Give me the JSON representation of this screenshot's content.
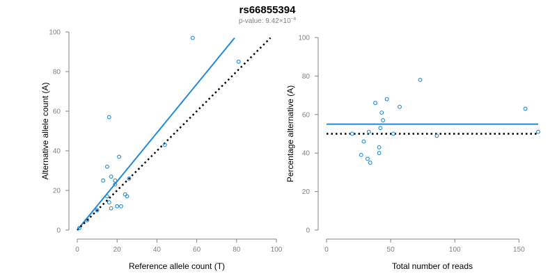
{
  "title": "rs66855394",
  "subtitle": {
    "prefix": "p-value: 9.42×10",
    "exponent": "−4"
  },
  "colors": {
    "points": "#1f8bd8",
    "fit_line": "#1f8bd8",
    "reference_line": "#000000",
    "axis": "#808080"
  },
  "chart_data": [
    {
      "type": "scatter",
      "xlabel": "Reference allele count (T)",
      "ylabel": "Alternative allele count (A)",
      "xlim": [
        0,
        100
      ],
      "ylim": [
        0,
        100
      ],
      "xticks": [
        0,
        20,
        40,
        60,
        80,
        100
      ],
      "yticks": [
        0,
        20,
        40,
        60,
        80,
        100
      ],
      "points": [
        [
          1,
          1
        ],
        [
          5,
          5
        ],
        [
          10,
          10
        ],
        [
          13,
          25
        ],
        [
          15,
          32
        ],
        [
          16,
          57
        ],
        [
          15,
          17
        ],
        [
          16,
          14
        ],
        [
          17,
          11
        ],
        [
          17,
          27
        ],
        [
          19,
          25
        ],
        [
          19,
          23
        ],
        [
          20,
          12
        ],
        [
          21,
          37
        ],
        [
          22,
          12
        ],
        [
          24,
          18
        ],
        [
          25,
          17
        ],
        [
          26,
          26
        ],
        [
          44,
          43
        ],
        [
          58,
          97
        ],
        [
          81,
          85
        ]
      ],
      "lines": [
        {
          "kind": "fit",
          "style": "solid",
          "x": [
            0,
            79
          ],
          "y": [
            0,
            97
          ]
        },
        {
          "kind": "reference",
          "style": "dotted",
          "x": [
            0,
            97
          ],
          "y": [
            0,
            97
          ]
        }
      ],
      "grid": false
    },
    {
      "type": "scatter",
      "xlabel": "Total number of reads",
      "ylabel": "Percentage alternative (A)",
      "xlim": [
        0,
        165
      ],
      "ylim": [
        0,
        100
      ],
      "xticks": [
        0,
        50,
        100,
        150
      ],
      "yticks": [
        0,
        20,
        40,
        60,
        80,
        100
      ],
      "points": [
        [
          20,
          50
        ],
        [
          27,
          39
        ],
        [
          29,
          46
        ],
        [
          32,
          37
        ],
        [
          33,
          51
        ],
        [
          34,
          35
        ],
        [
          38,
          66
        ],
        [
          41,
          43
        ],
        [
          41,
          40
        ],
        [
          42,
          53
        ],
        [
          43,
          61
        ],
        [
          44,
          57
        ],
        [
          47,
          68
        ],
        [
          52,
          50
        ],
        [
          57,
          64
        ],
        [
          73,
          78
        ],
        [
          86,
          49
        ],
        [
          155,
          63
        ],
        [
          165,
          51
        ]
      ],
      "lines": [
        {
          "kind": "fit",
          "style": "solid",
          "x": [
            0,
            165
          ],
          "y": [
            55,
            55
          ]
        },
        {
          "kind": "reference",
          "style": "dotted",
          "x": [
            0,
            165
          ],
          "y": [
            50,
            50
          ]
        }
      ],
      "grid": false
    }
  ]
}
